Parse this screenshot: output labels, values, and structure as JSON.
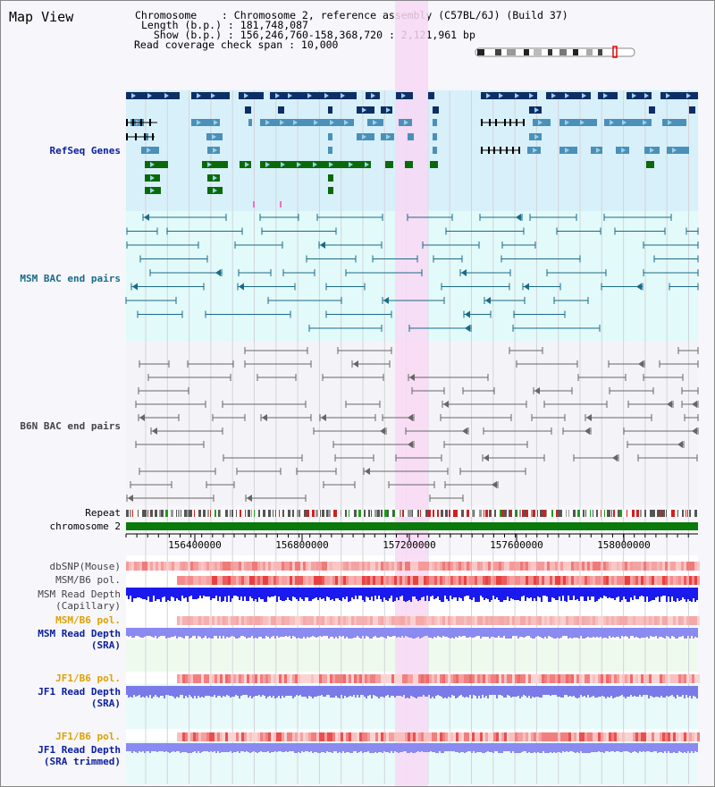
{
  "header": {
    "title": "Map View",
    "chromosome_line": "Chromosome    : Chromosome 2, reference assembly (C57BL/6J) (Build 37)",
    "length_line": "Length (b.p.) : 181,748,087",
    "show_line": "  Show (b.p.) : 156,246,760-158,368,720 : 2,121,961 bp",
    "coverage_line": "Read coverage check span : 10,000"
  },
  "tracks": {
    "refseq": "RefSeq Genes",
    "msm_bac": "MSM BAC end pairs",
    "b6n_bac": "B6N BAC end pairs",
    "repeat": "Repeat",
    "chromosome": "chromosome 2",
    "dbsnp": "dbSNP(Mouse)",
    "msm_b6_pol_1": "MSM/B6 pol.",
    "msm_depth_cap": "MSM Read Depth\n(Capillary)",
    "msm_b6_pol_2": "MSM/B6 pol.",
    "msm_depth_sra": "MSM Read Depth\n(SRA)",
    "jf1_b6_pol_1": "JF1/B6 pol.",
    "jf1_depth_sra": "JF1 Read Depth\n(SRA)",
    "jf1_b6_pol_2": "JF1/B6 pol.",
    "jf1_depth_trim": "JF1 Read Depth\n(SRA trimmed)"
  },
  "axis": {
    "ticks": [
      "156400000",
      "156800000",
      "157200000",
      "157600000",
      "158000000"
    ]
  },
  "colors": {
    "refseq_bg": "#d8f0fa",
    "msm_bg": "#e2fafa",
    "b6n_bg": "#f4f4f8",
    "highlight": "#f8d8f4",
    "gene_dark": "#0d2e66",
    "gene_mid": "#4a90b8",
    "gene_green": "#0a6a0a",
    "msm_line": "#1a6a88",
    "b6n_line": "#666666",
    "chrom_bar": "#0a7a0a",
    "label_blue": "#0a1e9e",
    "label_orange": "#e0a000",
    "label_teal": "#1a6a88",
    "label_dark": "#444444"
  }
}
